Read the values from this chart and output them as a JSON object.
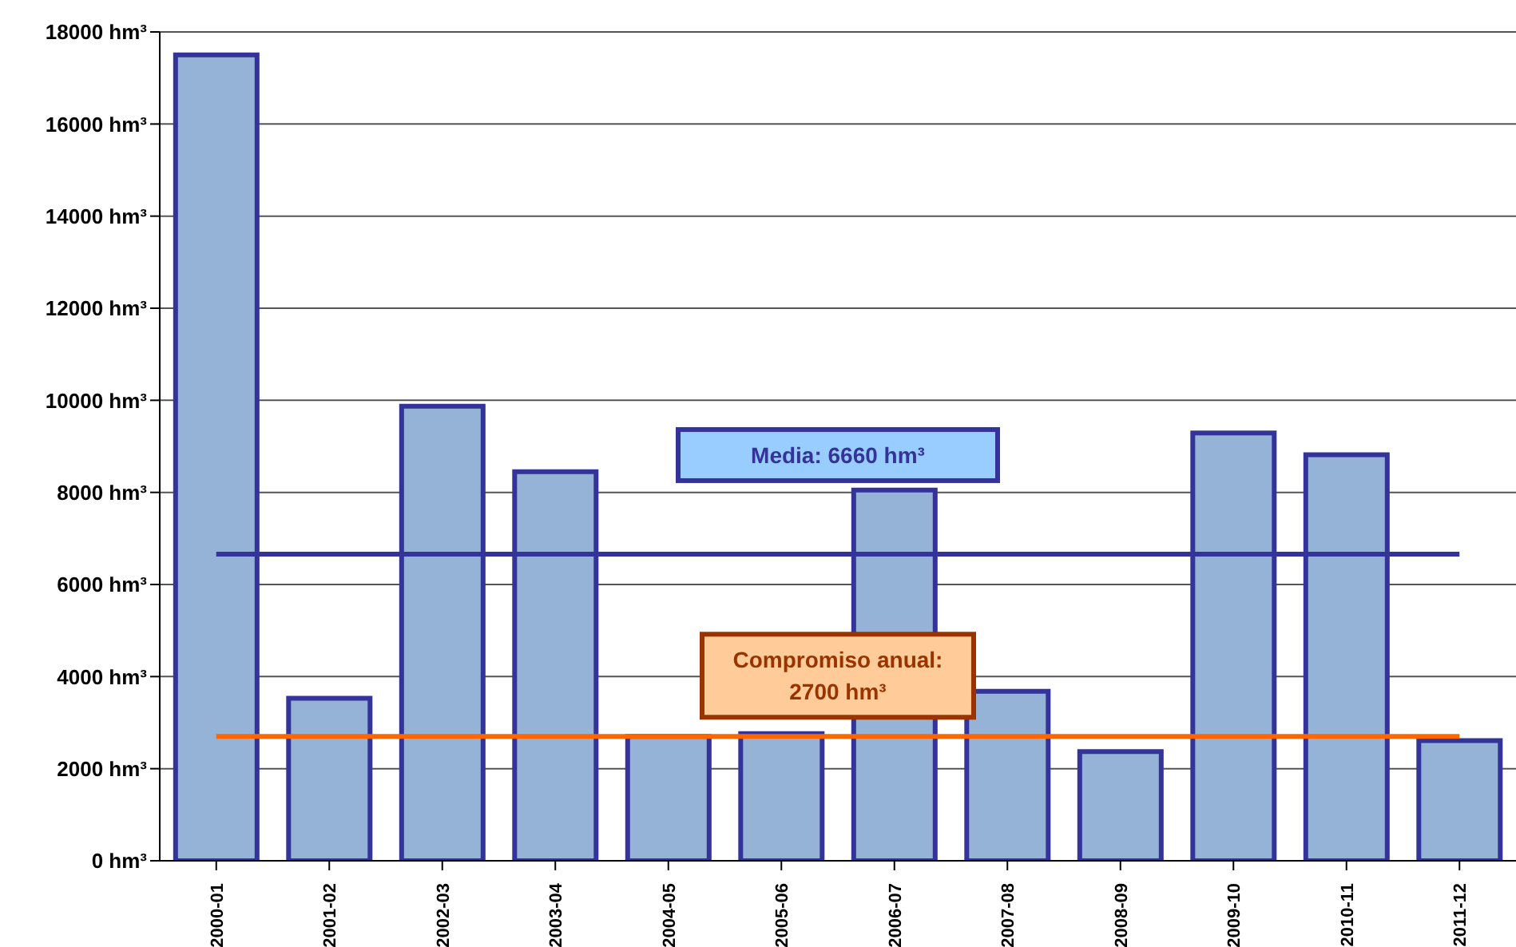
{
  "chart_data": {
    "type": "bar",
    "categories": [
      "2000-01",
      "2001-02",
      "2002-03",
      "2003-04",
      "2004-05",
      "2005-06",
      "2006-07",
      "2007-08",
      "2008-09",
      "2009-10",
      "2010-11",
      "2011-12"
    ],
    "values": [
      17500,
      3530,
      9870,
      8450,
      2700,
      2760,
      8050,
      3680,
      2370,
      9290,
      8820,
      2610
    ],
    "color": "#95b3d7",
    "ylim": [
      0,
      18000
    ],
    "yticks": [
      {
        "value": 0,
        "label": "0 hm³"
      },
      {
        "value": 2000,
        "label": "2000 hm³"
      },
      {
        "value": 4000,
        "label": "4000 hm³"
      },
      {
        "value": 6000,
        "label": "6000 hm³"
      },
      {
        "value": 8000,
        "label": "8000 hm³"
      },
      {
        "value": 10000,
        "label": "10000 hm³"
      },
      {
        "value": 12000,
        "label": "12000 hm³"
      },
      {
        "value": 14000,
        "label": "14000 hm³"
      },
      {
        "value": 16000,
        "label": "16000 hm³"
      },
      {
        "value": 18000,
        "label": "18000 hm³"
      }
    ],
    "grid": "y",
    "legend": false,
    "ref_lines": [
      {
        "axis": "y",
        "value": 6660,
        "label": "Media: 6660 hm³",
        "color": "#333399"
      },
      {
        "axis": "y",
        "value": 2700,
        "label": "Compromiso anual: 2700 hm³",
        "color": "#ff6600"
      }
    ]
  }
}
